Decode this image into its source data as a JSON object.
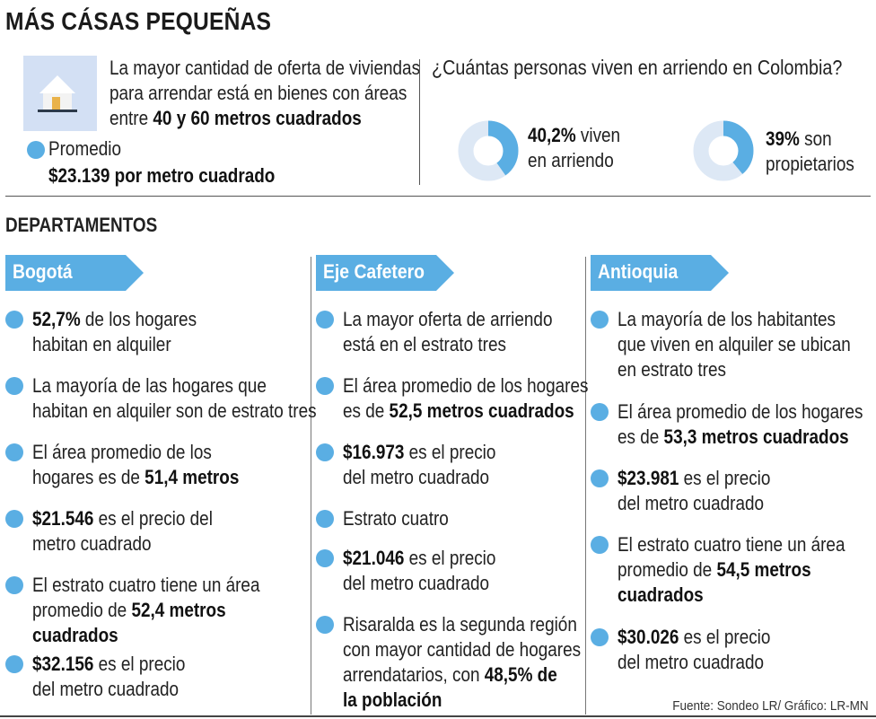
{
  "header": {
    "title": "MÁS CÁSAS PEQUEÑAS"
  },
  "intro": {
    "text_lines": [
      "La mayor cantidad de oferta de viviendas",
      "para arrendar está en bienes con áreas"
    ],
    "text_line3_prefix": "entre ",
    "text_line3_bold": "40 y 60 metros cuadrados",
    "average_label": "Promedio",
    "average_value": "$23.139 por metro cuadrado"
  },
  "question": {
    "title": "¿Cuántas personas viven en arriendo en Colombia?"
  },
  "colors": {
    "accent": "#5aaee3",
    "donut_bg": "#dde8f5",
    "banner": "#5aaee3",
    "house_bg": "#d3e0f4"
  },
  "chart_data": [
    {
      "type": "pie",
      "values": [
        40.2,
        59.8
      ],
      "value_bold": "40,2%",
      "label_after": " viven",
      "label_line2": "en arriendo"
    },
    {
      "type": "pie",
      "values": [
        39,
        61
      ],
      "value_bold": "39%",
      "label_after": " son",
      "label_line2": "propietarios"
    }
  ],
  "departments": {
    "title": "DEPARTAMENTOS",
    "columns": [
      {
        "name": "Bogotá",
        "items": [
          {
            "lines": [
              [
                {
                  "b": "52,7%"
                },
                {
                  "t": " de los hogares"
                }
              ],
              [
                {
                  "t": "habitan en alquiler"
                }
              ]
            ]
          },
          {
            "lines": [
              [
                {
                  "t": "La mayoría de las hogares que"
                }
              ],
              [
                {
                  "t": "habitan en alquiler son de estrato tres"
                }
              ]
            ]
          },
          {
            "lines": [
              [
                {
                  "t": "El área promedio de los"
                }
              ],
              [
                {
                  "t": "hogares es de "
                },
                {
                  "b": "51,4 metros"
                }
              ]
            ]
          },
          {
            "lines": [
              [
                {
                  "b": "$21.546"
                },
                {
                  "t": " es el precio del"
                }
              ],
              [
                {
                  "t": "metro cuadrado"
                }
              ]
            ]
          },
          {
            "lines": [
              [
                {
                  "t": "El estrato cuatro tiene un área"
                }
              ],
              [
                {
                  "t": "promedio de "
                },
                {
                  "b": "52,4 metros"
                }
              ],
              [
                {
                  "b": "cuadrados"
                }
              ]
            ]
          },
          {
            "lines": [
              [
                {
                  "b": "$32.156"
                },
                {
                  "t": " es el precio"
                }
              ],
              [
                {
                  "t": "del metro cuadrado"
                }
              ]
            ]
          }
        ]
      },
      {
        "name": "Eje Cafetero",
        "items": [
          {
            "lines": [
              [
                {
                  "t": "La mayor oferta de arriendo"
                }
              ],
              [
                {
                  "t": "está en el estrato tres"
                }
              ]
            ]
          },
          {
            "lines": [
              [
                {
                  "t": "El área promedio de los hogares"
                }
              ],
              [
                {
                  "t": "es de "
                },
                {
                  "b": "52,5 metros cuadrados"
                }
              ]
            ]
          },
          {
            "lines": [
              [
                {
                  "b": "$16.973"
                },
                {
                  "t": " es el precio"
                }
              ],
              [
                {
                  "t": "del metro cuadrado"
                }
              ]
            ]
          },
          {
            "lines": [
              [
                {
                  "t": "Estrato cuatro"
                }
              ]
            ]
          },
          {
            "lines": [
              [
                {
                  "b": "$21.046"
                },
                {
                  "t": " es el precio"
                }
              ],
              [
                {
                  "t": "del metro cuadrado"
                }
              ]
            ]
          },
          {
            "lines": [
              [
                {
                  "t": "Risaralda es la segunda región"
                }
              ],
              [
                {
                  "t": "con mayor cantidad de hogares"
                }
              ],
              [
                {
                  "t": "arrendatarios, con "
                },
                {
                  "b": "48,5% de"
                }
              ],
              [
                {
                  "b": "la población"
                }
              ]
            ]
          }
        ]
      },
      {
        "name": "Antioquia",
        "items": [
          {
            "lines": [
              [
                {
                  "t": "La mayoría de los habitantes"
                }
              ],
              [
                {
                  "t": "que viven en alquiler se ubican"
                }
              ],
              [
                {
                  "t": "en estrato tres"
                }
              ]
            ]
          },
          {
            "lines": [
              [
                {
                  "t": "El área promedio de los hogares"
                }
              ],
              [
                {
                  "t": "es de "
                },
                {
                  "b": "53,3 metros cuadrados"
                }
              ]
            ]
          },
          {
            "lines": [
              [
                {
                  "b": "$23.981"
                },
                {
                  "t": " es el precio"
                }
              ],
              [
                {
                  "t": "del metro cuadrado"
                }
              ]
            ]
          },
          {
            "lines": [
              [
                {
                  "t": "El estrato cuatro tiene un área"
                }
              ],
              [
                {
                  "t": "promedio de "
                },
                {
                  "b": "54,5 metros"
                }
              ],
              [
                {
                  "b": "cuadrados"
                }
              ]
            ]
          },
          {
            "lines": [
              [
                {
                  "b": "$30.026"
                },
                {
                  "t": " es el precio"
                }
              ],
              [
                {
                  "t": "del metro cuadrado"
                }
              ]
            ]
          }
        ]
      }
    ]
  },
  "footer": {
    "source": "Fuente: Sondeo LR/ Gráfico: LR-MN"
  }
}
